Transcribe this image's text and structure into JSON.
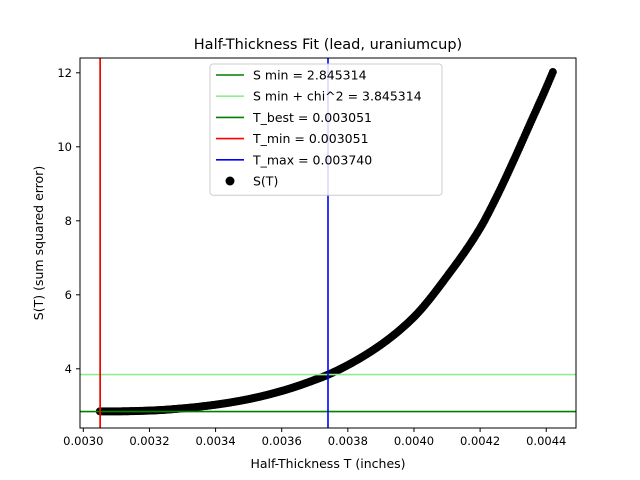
{
  "chart_data": {
    "type": "scatter",
    "title": "Half-Thickness Fit (lead, uraniumcup)",
    "xlabel": "Half-Thickness T (inches)",
    "ylabel": "S(T) (sum squared error)",
    "xlim": [
      0.00299,
      0.00449
    ],
    "ylim": [
      2.4,
      12.4
    ],
    "x_ticks": [
      0.003,
      0.0032,
      0.0034,
      0.0036,
      0.0038,
      0.004,
      0.0042,
      0.0044
    ],
    "x_tick_labels": [
      "0.0030",
      "0.0032",
      "0.0034",
      "0.0036",
      "0.0038",
      "0.0040",
      "0.0042",
      "0.0044"
    ],
    "y_ticks": [
      4,
      6,
      8,
      10,
      12
    ],
    "y_tick_labels": [
      "4",
      "6",
      "8",
      "10",
      "12"
    ],
    "grid": false,
    "legend_placement": "upper-center",
    "reference_lines": [
      {
        "orientation": "horizontal",
        "value": 2.845314,
        "label": "S min = 2.845314",
        "color": "#008000"
      },
      {
        "orientation": "horizontal",
        "value": 3.845314,
        "label": "S min + chi^2 = 3.845314",
        "color": "#90ee90"
      },
      {
        "orientation": "vertical",
        "value": 0.003051,
        "label": "T_best = 0.003051",
        "color": "#008000"
      },
      {
        "orientation": "vertical",
        "value": 0.003051,
        "label": "T_min = 0.003051",
        "color": "#ff0000"
      },
      {
        "orientation": "vertical",
        "value": 0.00374,
        "label": "T_max = 0.003740",
        "color": "#0000ff"
      }
    ],
    "series": [
      {
        "name": "S(T)",
        "color": "#000000",
        "x": [
          0.00305,
          0.0031,
          0.0032,
          0.0033,
          0.0034,
          0.0035,
          0.0036,
          0.00365,
          0.0037,
          0.00374,
          0.0038,
          0.0039,
          0.004,
          0.0041,
          0.0042,
          0.00425,
          0.0043,
          0.00435,
          0.0044,
          0.00442
        ],
        "y": [
          2.85,
          2.85,
          2.87,
          2.93,
          3.03,
          3.18,
          3.4,
          3.54,
          3.7,
          3.84,
          4.1,
          4.65,
          5.4,
          6.5,
          7.8,
          8.65,
          9.6,
          10.6,
          11.6,
          12.02
        ]
      }
    ]
  }
}
